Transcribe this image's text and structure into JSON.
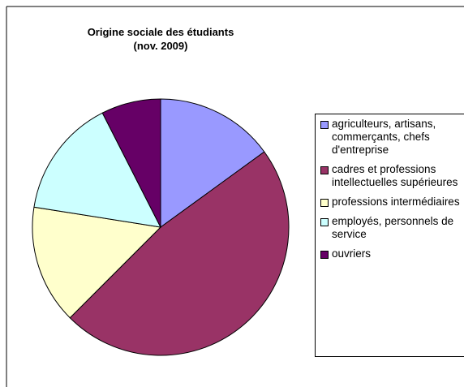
{
  "chart_data": {
    "type": "pie",
    "title": [
      "Origine sociale des étudiants",
      "(nov. 2009)"
    ],
    "categories": [
      "agriculteurs, artisans, commerçants, chefs d'entreprise",
      "cadres et professions intellectuelles supérieures",
      "professions intermédiaires",
      "employés, personnels de service",
      "ouvriers"
    ],
    "values": [
      15,
      47.5,
      15,
      15,
      7.5
    ],
    "colors": [
      "#9999ff",
      "#993366",
      "#ffffcc",
      "#ccffff",
      "#660066"
    ],
    "legend": "right"
  }
}
